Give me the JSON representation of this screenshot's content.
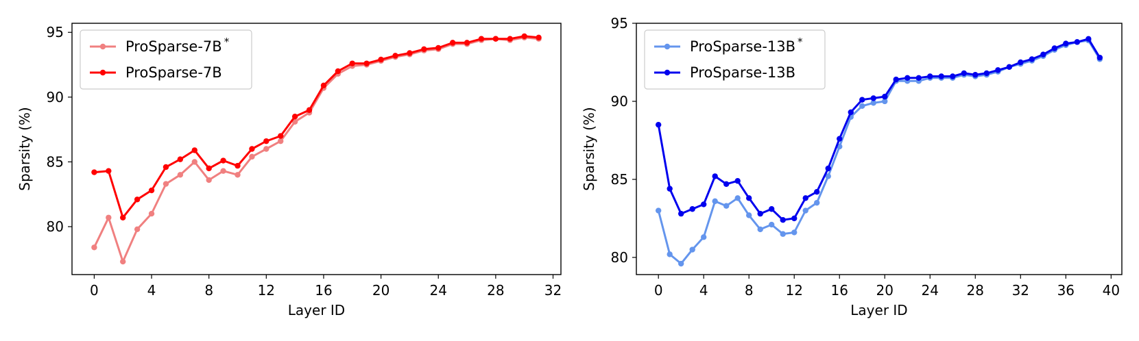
{
  "chart_data": [
    {
      "type": "line",
      "xlabel": "Layer ID",
      "ylabel": "Sparsity (%)",
      "xlim": [
        -1.55,
        32.55
      ],
      "ylim": [
        76.3,
        95.7
      ],
      "xticks": [
        0,
        4,
        8,
        12,
        16,
        20,
        24,
        28,
        32
      ],
      "yticks": [
        80,
        85,
        90,
        95
      ],
      "legend_position": "top-left",
      "x": [
        0,
        1,
        2,
        3,
        4,
        5,
        6,
        7,
        8,
        9,
        10,
        11,
        12,
        13,
        14,
        15,
        16,
        17,
        18,
        19,
        20,
        21,
        22,
        23,
        24,
        25,
        26,
        27,
        28,
        29,
        30,
        31
      ],
      "series": [
        {
          "name": "ProSparse-7B",
          "name_sup": "*",
          "color": "#f08080",
          "values": [
            78.4,
            80.7,
            77.3,
            79.8,
            81.0,
            83.3,
            84.0,
            85.0,
            83.6,
            84.3,
            84.0,
            85.4,
            86.0,
            86.6,
            88.1,
            88.8,
            90.7,
            91.8,
            92.4,
            92.5,
            92.8,
            93.1,
            93.3,
            93.6,
            93.7,
            94.1,
            94.1,
            94.4,
            94.5,
            94.4,
            94.6,
            94.5
          ]
        },
        {
          "name": "ProSparse-7B",
          "name_sup": "",
          "color": "#ff0000",
          "values": [
            84.2,
            84.3,
            80.7,
            82.1,
            82.8,
            84.6,
            85.2,
            85.9,
            84.5,
            85.1,
            84.7,
            86.0,
            86.6,
            87.0,
            88.5,
            89.0,
            90.9,
            92.0,
            92.6,
            92.6,
            92.9,
            93.2,
            93.4,
            93.7,
            93.8,
            94.2,
            94.2,
            94.5,
            94.5,
            94.5,
            94.7,
            94.6
          ]
        }
      ]
    },
    {
      "type": "line",
      "xlabel": "Layer ID",
      "ylabel": "Sparsity (%)",
      "xlim": [
        -1.95,
        40.95
      ],
      "ylim": [
        78.9,
        95.0
      ],
      "xticks": [
        0,
        4,
        8,
        12,
        16,
        20,
        24,
        28,
        32,
        36,
        40
      ],
      "yticks": [
        80,
        85,
        90,
        95
      ],
      "legend_position": "top-left",
      "x": [
        0,
        1,
        2,
        3,
        4,
        5,
        6,
        7,
        8,
        9,
        10,
        11,
        12,
        13,
        14,
        15,
        16,
        17,
        18,
        19,
        20,
        21,
        22,
        23,
        24,
        25,
        26,
        27,
        28,
        29,
        30,
        31,
        32,
        33,
        34,
        35,
        36,
        37,
        38,
        39
      ],
      "series": [
        {
          "name": "ProSparse-13B",
          "name_sup": "*",
          "color": "#6495ed",
          "values": [
            83.0,
            80.2,
            79.6,
            80.5,
            81.3,
            83.6,
            83.3,
            83.8,
            82.7,
            81.8,
            82.1,
            81.5,
            81.6,
            83.0,
            83.5,
            85.2,
            87.1,
            89.0,
            89.7,
            89.9,
            90.0,
            91.3,
            91.3,
            91.3,
            91.5,
            91.5,
            91.5,
            91.7,
            91.6,
            91.7,
            91.9,
            92.2,
            92.4,
            92.6,
            92.9,
            93.3,
            93.6,
            93.8,
            93.9,
            92.7
          ]
        },
        {
          "name": "ProSparse-13B",
          "name_sup": "",
          "color": "#0000ee",
          "values": [
            88.5,
            84.4,
            82.8,
            83.1,
            83.4,
            85.2,
            84.7,
            84.9,
            83.8,
            82.8,
            83.1,
            82.4,
            82.5,
            83.8,
            84.2,
            85.7,
            87.6,
            89.3,
            90.1,
            90.2,
            90.3,
            91.4,
            91.5,
            91.5,
            91.6,
            91.6,
            91.6,
            91.8,
            91.7,
            91.8,
            92.0,
            92.2,
            92.5,
            92.7,
            93.0,
            93.4,
            93.7,
            93.8,
            94.0,
            92.8
          ]
        }
      ]
    }
  ]
}
